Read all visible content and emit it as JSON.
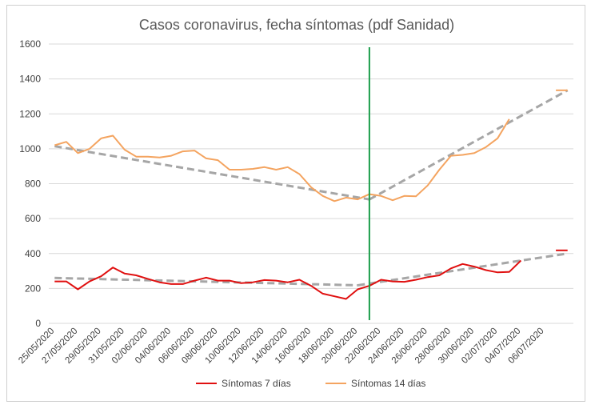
{
  "chart_data": {
    "type": "line",
    "title": "Casos coronavirus, fecha síntomas (pdf Sanidad)",
    "xlabel": "",
    "ylabel": "",
    "ylim": [
      0,
      1600
    ],
    "yticks": [
      "0",
      "200",
      "400",
      "600",
      "800",
      "1000",
      "1200",
      "1400",
      "1600"
    ],
    "xtick_labels": [
      "25/05/2020",
      "27/05/2020",
      "29/05/2020",
      "31/05/2020",
      "02/06/2020",
      "04/06/2020",
      "06/06/2020",
      "08/06/2020",
      "10/06/2020",
      "12/06/2020",
      "14/06/2020",
      "16/06/2020",
      "18/06/2020",
      "20/06/2020",
      "22/06/2020",
      "24/06/2020",
      "26/06/2020",
      "28/06/2020",
      "30/06/2020",
      "02/07/2020",
      "04/07/2020",
      "06/07/2020"
    ],
    "legend_position": "bottom",
    "grid": "horizontal",
    "x_start": "25/05/2020",
    "x_end": "08/07/2020",
    "vertical_marker": {
      "x": "21/06/2020",
      "color": "#1a9e4a"
    },
    "series": [
      {
        "name": "Síntomas 7 días",
        "color": "#e01010",
        "x": [
          "25/05/2020",
          "26/05/2020",
          "27/05/2020",
          "28/05/2020",
          "29/05/2020",
          "30/05/2020",
          "31/05/2020",
          "01/06/2020",
          "02/06/2020",
          "03/06/2020",
          "04/06/2020",
          "05/06/2020",
          "06/06/2020",
          "07/06/2020",
          "08/06/2020",
          "09/06/2020",
          "10/06/2020",
          "11/06/2020",
          "12/06/2020",
          "13/06/2020",
          "14/06/2020",
          "15/06/2020",
          "16/06/2020",
          "17/06/2020",
          "18/06/2020",
          "19/06/2020",
          "20/06/2020",
          "21/06/2020",
          "22/06/2020",
          "23/06/2020",
          "24/06/2020",
          "25/06/2020",
          "26/06/2020",
          "27/06/2020",
          "28/06/2020",
          "29/06/2020",
          "30/06/2020",
          "01/07/2020",
          "02/07/2020",
          "03/07/2020",
          "04/07/2020",
          "05/07/2020",
          "06/07/2020",
          "07/07/2020",
          "08/07/2020"
        ],
        "y": [
          240,
          240,
          195,
          240,
          270,
          320,
          285,
          275,
          255,
          235,
          225,
          225,
          245,
          262,
          245,
          245,
          230,
          235,
          248,
          245,
          235,
          250,
          215,
          170,
          155,
          140,
          195,
          215,
          250,
          240,
          238,
          250,
          265,
          275,
          315,
          340,
          325,
          305,
          292,
          295,
          360,
          null,
          null,
          418,
          418
        ]
      },
      {
        "name": "Síntomas 14 días",
        "color": "#f4a460",
        "x": [
          "25/05/2020",
          "26/05/2020",
          "27/05/2020",
          "28/05/2020",
          "29/05/2020",
          "30/05/2020",
          "31/05/2020",
          "01/06/2020",
          "02/06/2020",
          "03/06/2020",
          "04/06/2020",
          "05/06/2020",
          "06/06/2020",
          "07/06/2020",
          "08/06/2020",
          "09/06/2020",
          "10/06/2020",
          "11/06/2020",
          "12/06/2020",
          "13/06/2020",
          "14/06/2020",
          "15/06/2020",
          "16/06/2020",
          "17/06/2020",
          "18/06/2020",
          "19/06/2020",
          "20/06/2020",
          "21/06/2020",
          "22/06/2020",
          "23/06/2020",
          "24/06/2020",
          "25/06/2020",
          "26/06/2020",
          "27/06/2020",
          "28/06/2020",
          "29/06/2020",
          "30/06/2020",
          "01/07/2020",
          "02/07/2020",
          "03/07/2020",
          "04/07/2020",
          "05/07/2020",
          "06/07/2020",
          "07/07/2020",
          "08/07/2020"
        ],
        "y": [
          1020,
          1040,
          975,
          1000,
          1060,
          1075,
          995,
          955,
          955,
          950,
          960,
          985,
          990,
          945,
          935,
          880,
          880,
          885,
          895,
          880,
          895,
          855,
          780,
          730,
          700,
          720,
          710,
          740,
          730,
          705,
          730,
          728,
          790,
          880,
          960,
          965,
          975,
          1010,
          1060,
          1170,
          null,
          null,
          null,
          1335,
          1335
        ]
      }
    ],
    "trendlines": [
      {
        "color": "#a6a6a6",
        "x": [
          "25/05/2020",
          "21/06/2020"
        ],
        "y": [
          1015,
          710
        ]
      },
      {
        "color": "#a6a6a6",
        "x": [
          "21/06/2020",
          "08/07/2020"
        ],
        "y": [
          710,
          1335
        ]
      },
      {
        "color": "#a6a6a6",
        "x": [
          "25/05/2020",
          "20/06/2020"
        ],
        "y": [
          260,
          218
        ]
      },
      {
        "color": "#a6a6a6",
        "x": [
          "20/06/2020",
          "08/07/2020"
        ],
        "y": [
          218,
          400
        ]
      }
    ]
  }
}
